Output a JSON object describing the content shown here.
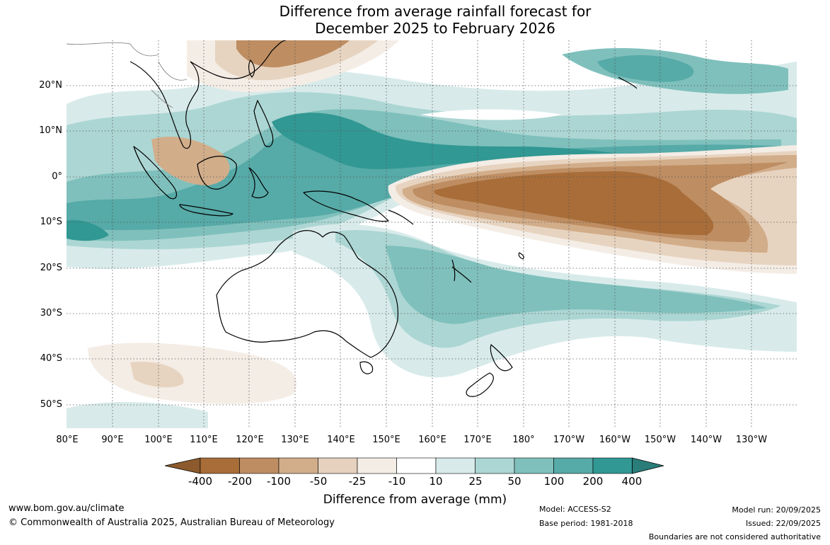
{
  "title": {
    "line1": "Difference from average rainfall forecast for",
    "line2": "December 2025 to February 2026"
  },
  "map": {
    "latitude_labels": [
      "20°N",
      "10°N",
      "0°",
      "10°S",
      "20°S",
      "30°S",
      "40°S",
      "50°S"
    ],
    "longitude_labels": [
      "80°E",
      "90°E",
      "100°E",
      "110°E",
      "120°E",
      "130°E",
      "140°E",
      "150°E",
      "160°E",
      "170°E",
      "180°",
      "170°W",
      "160°W",
      "150°W",
      "140°W",
      "130°W"
    ],
    "colors": {
      "brown_dark": "#a86d38",
      "brown_med": "#c4966a",
      "brown_light": "#d6b290",
      "tan": "#e7d4c0",
      "cream": "#f4ede6",
      "white": "#ffffff",
      "teal_pale": "#d8ebea",
      "teal_light": "#acd6d3",
      "teal_med": "#7fc0bc",
      "teal": "#56aaa7",
      "teal_dark": "#319893",
      "coast": "#000000",
      "border": "#888888"
    }
  },
  "legend": {
    "tick_labels": [
      "-400",
      "-200",
      "-100",
      "-50",
      "-25",
      "-10",
      "10",
      "25",
      "50",
      "100",
      "200",
      "400"
    ],
    "bin_colors": [
      "#a86d38",
      "#be8d62",
      "#d2ad8a",
      "#e5d1bd",
      "#f4ede6",
      "#ffffff",
      "#d8ebea",
      "#acd6d3",
      "#7fc0bc",
      "#56aaa7",
      "#319893"
    ],
    "extend_low_color": "#8c5a2c",
    "extend_high_color": "#2a7d79",
    "title": "Difference from average (mm)"
  },
  "footer": {
    "website": "www.bom.gov.au/climate",
    "copyright": "© Commonwealth of Australia 2025, Australian Bureau of Meteorology",
    "model": "Model: ACCESS-S2",
    "base_period": "Base period: 1981-2018",
    "model_run": "Model run: 20/09/2025",
    "issued": "Issued: 22/09/2025",
    "disclaimer": "Boundaries are not considered authoritative"
  }
}
